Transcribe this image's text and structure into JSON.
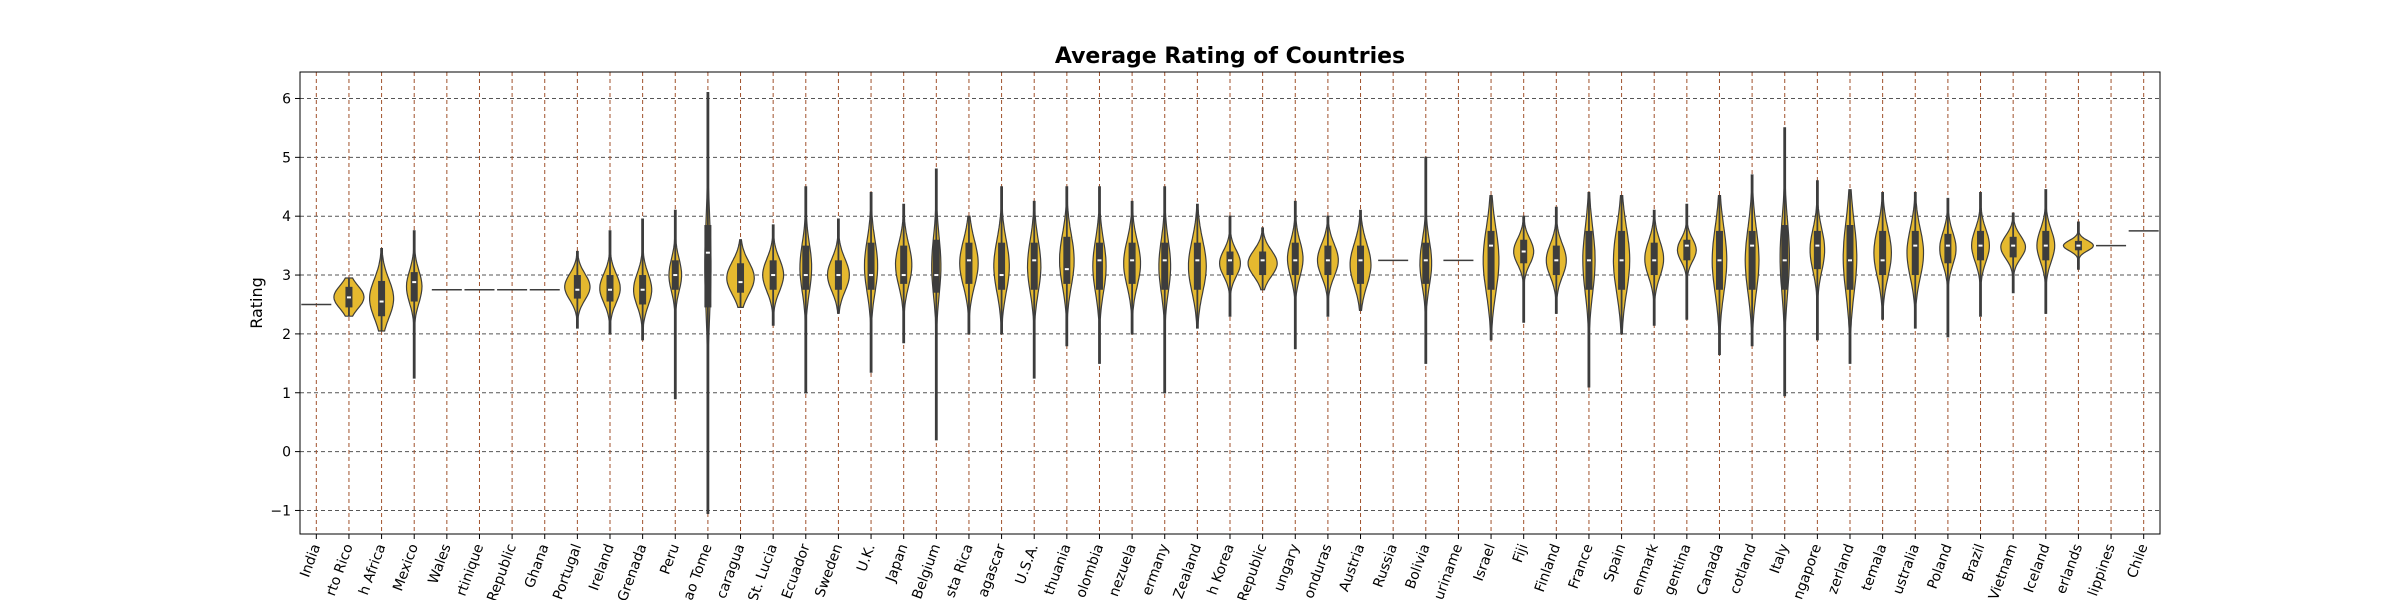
{
  "chart_data": {
    "type": "violin",
    "title": "Average Rating of Countries",
    "xlabel": "",
    "ylabel": "Rating",
    "ylim": [
      -1.4,
      6.45
    ],
    "yticks": [
      -1,
      0,
      1,
      2,
      3,
      4,
      5,
      6
    ],
    "ytick_labels": [
      "−1",
      "0",
      "1",
      "2",
      "3",
      "4",
      "5",
      "6"
    ],
    "grid": true,
    "legend": "none",
    "colors": {
      "violin_fill": "#e5b92f",
      "violin_edge": "#3d3d3d",
      "box": "#3d3d3d",
      "median": "#ffffff",
      "grid": "#555555",
      "grid_x": "#a0522d"
    },
    "categories": [
      "India",
      "Puerto Rico",
      "South Africa",
      "Mexico",
      "Wales",
      "Martinique",
      "Dominican Republic",
      "Ghana",
      "Portugal",
      "Ireland",
      "Grenada",
      "Peru",
      "Sao Tome",
      "Nicaragua",
      "St. Lucia",
      "Ecuador",
      "Sweden",
      "U.K.",
      "Japan",
      "Belgium",
      "Costa Rica",
      "Madagascar",
      "U.S.A.",
      "Lithuania",
      "Colombia",
      "Venezuela",
      "Germany",
      "New Zealand",
      "South Korea",
      "Czech Republic",
      "Hungary",
      "Honduras",
      "Austria",
      "Russia",
      "Bolivia",
      "Suriname",
      "Israel",
      "Fiji",
      "Finland",
      "France",
      "Spain",
      "Denmark",
      "Argentina",
      "Canada",
      "Scotland",
      "Italy",
      "Singapore",
      "Switzerland",
      "Guatemala",
      "Australia",
      "Poland",
      "Brazil",
      "Vietnam",
      "Iceland",
      "Netherlands",
      "Philippines",
      "Chile"
    ],
    "tick_labels_visible": [
      "India",
      "rto Rico",
      "h Africa",
      "Mexico",
      "Wales",
      "rtinique",
      "Republic",
      "Ghana",
      "Portugal",
      "Ireland",
      "Grenada",
      "Peru",
      "ao Tome",
      "caragua",
      "St. Lucia",
      "Ecuador",
      "Sweden",
      "U.K.",
      "Japan",
      "Belgium",
      "sta Rica",
      "agascar",
      "U.S.A.",
      "thuania",
      "olombia",
      "nezuela",
      "ermany",
      "Zealand",
      "h Korea",
      "Republic",
      "ungary",
      "onduras",
      "Austria",
      "Russia",
      "Bolivia",
      "uriname",
      "Israel",
      "Fiji",
      "Finland",
      "France",
      "Spain",
      "enmark",
      "gentina",
      "Canada",
      "cotland",
      "Italy",
      "ngapore",
      "zerland",
      "temala",
      "ustralia",
      "Poland",
      "Brazil",
      "Vietnam",
      "Iceland",
      "erlands",
      "lippines",
      "Chile"
    ],
    "series": [
      {
        "name": "India",
        "min": 2.5,
        "q1": 2.5,
        "median": 2.5,
        "q3": 2.5,
        "max": 2.5
      },
      {
        "name": "Puerto Rico",
        "min": 2.3,
        "q1": 2.45,
        "median": 2.62,
        "q3": 2.8,
        "max": 2.95
      },
      {
        "name": "South Africa",
        "min": 2.05,
        "q1": 2.3,
        "median": 2.55,
        "q3": 2.9,
        "max": 3.45
      },
      {
        "name": "Mexico",
        "min": 1.25,
        "q1": 2.55,
        "median": 2.88,
        "q3": 3.05,
        "max": 3.75
      },
      {
        "name": "Wales",
        "min": 2.75,
        "q1": 2.75,
        "median": 2.75,
        "q3": 2.75,
        "max": 2.75
      },
      {
        "name": "Martinique",
        "min": 2.75,
        "q1": 2.75,
        "median": 2.75,
        "q3": 2.75,
        "max": 2.75
      },
      {
        "name": "Dominican Republic",
        "min": 2.75,
        "q1": 2.75,
        "median": 2.75,
        "q3": 2.75,
        "max": 2.75
      },
      {
        "name": "Ghana",
        "min": 2.75,
        "q1": 2.75,
        "median": 2.75,
        "q3": 2.75,
        "max": 2.75
      },
      {
        "name": "Portugal",
        "min": 2.1,
        "q1": 2.6,
        "median": 2.75,
        "q3": 3.0,
        "max": 3.4
      },
      {
        "name": "Ireland",
        "min": 2.0,
        "q1": 2.55,
        "median": 2.75,
        "q3": 3.0,
        "max": 3.75
      },
      {
        "name": "Grenada",
        "min": 1.9,
        "q1": 2.5,
        "median": 2.75,
        "q3": 3.0,
        "max": 3.95
      },
      {
        "name": "Peru",
        "min": 0.9,
        "q1": 2.75,
        "median": 3.0,
        "q3": 3.25,
        "max": 4.1
      },
      {
        "name": "Sao Tome",
        "min": -1.05,
        "q1": 2.45,
        "median": 3.38,
        "q3": 3.85,
        "max": 6.1
      },
      {
        "name": "Nicaragua",
        "min": 2.45,
        "q1": 2.7,
        "median": 2.88,
        "q3": 3.2,
        "max": 3.6
      },
      {
        "name": "St. Lucia",
        "min": 2.15,
        "q1": 2.75,
        "median": 3.0,
        "q3": 3.25,
        "max": 3.85
      },
      {
        "name": "Ecuador",
        "min": 1.0,
        "q1": 2.75,
        "median": 3.0,
        "q3": 3.5,
        "max": 4.5
      },
      {
        "name": "Sweden",
        "min": 2.35,
        "q1": 2.75,
        "median": 3.0,
        "q3": 3.25,
        "max": 3.95
      },
      {
        "name": "U.K.",
        "min": 1.35,
        "q1": 2.75,
        "median": 3.0,
        "q3": 3.55,
        "max": 4.4
      },
      {
        "name": "Japan",
        "min": 1.85,
        "q1": 2.85,
        "median": 3.0,
        "q3": 3.5,
        "max": 4.2
      },
      {
        "name": "Belgium",
        "min": 0.2,
        "q1": 2.7,
        "median": 3.0,
        "q3": 3.6,
        "max": 4.8
      },
      {
        "name": "Costa Rica",
        "min": 2.0,
        "q1": 2.85,
        "median": 3.25,
        "q3": 3.55,
        "max": 4.0
      },
      {
        "name": "Madagascar",
        "min": 2.0,
        "q1": 2.75,
        "median": 3.0,
        "q3": 3.55,
        "max": 4.5
      },
      {
        "name": "U.S.A.",
        "min": 1.25,
        "q1": 2.75,
        "median": 3.25,
        "q3": 3.55,
        "max": 4.25
      },
      {
        "name": "Lithuania",
        "min": 1.8,
        "q1": 2.85,
        "median": 3.1,
        "q3": 3.65,
        "max": 4.5
      },
      {
        "name": "Colombia",
        "min": 1.5,
        "q1": 2.75,
        "median": 3.25,
        "q3": 3.55,
        "max": 4.5
      },
      {
        "name": "Venezuela",
        "min": 2.0,
        "q1": 2.85,
        "median": 3.25,
        "q3": 3.55,
        "max": 4.25
      },
      {
        "name": "Germany",
        "min": 1.0,
        "q1": 2.75,
        "median": 3.25,
        "q3": 3.55,
        "max": 4.5
      },
      {
        "name": "New Zealand",
        "min": 2.1,
        "q1": 2.75,
        "median": 3.25,
        "q3": 3.55,
        "max": 4.2
      },
      {
        "name": "South Korea",
        "min": 2.3,
        "q1": 3.0,
        "median": 3.25,
        "q3": 3.4,
        "max": 4.0
      },
      {
        "name": "Czech Republic",
        "min": 2.75,
        "q1": 3.0,
        "median": 3.25,
        "q3": 3.4,
        "max": 3.8
      },
      {
        "name": "Hungary",
        "min": 1.75,
        "q1": 3.0,
        "median": 3.25,
        "q3": 3.55,
        "max": 4.25
      },
      {
        "name": "Honduras",
        "min": 2.3,
        "q1": 3.0,
        "median": 3.25,
        "q3": 3.5,
        "max": 4.0
      },
      {
        "name": "Austria",
        "min": 2.4,
        "q1": 2.85,
        "median": 3.25,
        "q3": 3.5,
        "max": 4.1
      },
      {
        "name": "Russia",
        "min": 3.25,
        "q1": 3.25,
        "median": 3.25,
        "q3": 3.25,
        "max": 3.25
      },
      {
        "name": "Bolivia",
        "min": 1.5,
        "q1": 2.85,
        "median": 3.25,
        "q3": 3.55,
        "max": 5.0
      },
      {
        "name": "Suriname",
        "min": 3.25,
        "q1": 3.25,
        "median": 3.25,
        "q3": 3.25,
        "max": 3.25
      },
      {
        "name": "Israel",
        "min": 1.9,
        "q1": 2.75,
        "median": 3.5,
        "q3": 3.75,
        "max": 4.35
      },
      {
        "name": "Fiji",
        "min": 2.2,
        "q1": 3.2,
        "median": 3.4,
        "q3": 3.6,
        "max": 4.0
      },
      {
        "name": "Finland",
        "min": 2.35,
        "q1": 3.0,
        "median": 3.25,
        "q3": 3.5,
        "max": 4.15
      },
      {
        "name": "France",
        "min": 1.1,
        "q1": 2.75,
        "median": 3.25,
        "q3": 3.75,
        "max": 4.4
      },
      {
        "name": "Spain",
        "min": 2.0,
        "q1": 2.75,
        "median": 3.25,
        "q3": 3.75,
        "max": 4.35
      },
      {
        "name": "Denmark",
        "min": 2.15,
        "q1": 3.0,
        "median": 3.25,
        "q3": 3.55,
        "max": 4.1
      },
      {
        "name": "Argentina",
        "min": 2.25,
        "q1": 3.25,
        "median": 3.5,
        "q3": 3.6,
        "max": 4.2
      },
      {
        "name": "Canada",
        "min": 1.65,
        "q1": 2.75,
        "median": 3.25,
        "q3": 3.75,
        "max": 4.35
      },
      {
        "name": "Scotland",
        "min": 1.8,
        "q1": 2.75,
        "median": 3.5,
        "q3": 3.75,
        "max": 4.7
      },
      {
        "name": "Italy",
        "min": 0.95,
        "q1": 2.75,
        "median": 3.25,
        "q3": 3.85,
        "max": 5.5
      },
      {
        "name": "Singapore",
        "min": 1.9,
        "q1": 3.1,
        "median": 3.5,
        "q3": 3.75,
        "max": 4.6
      },
      {
        "name": "Switzerland",
        "min": 1.5,
        "q1": 2.75,
        "median": 3.25,
        "q3": 3.85,
        "max": 4.45
      },
      {
        "name": "Guatemala",
        "min": 2.25,
        "q1": 3.0,
        "median": 3.25,
        "q3": 3.75,
        "max": 4.4
      },
      {
        "name": "Australia",
        "min": 2.1,
        "q1": 3.0,
        "median": 3.5,
        "q3": 3.75,
        "max": 4.4
      },
      {
        "name": "Poland",
        "min": 1.95,
        "q1": 3.2,
        "median": 3.5,
        "q3": 3.7,
        "max": 4.3
      },
      {
        "name": "Brazil",
        "min": 2.3,
        "q1": 3.25,
        "median": 3.5,
        "q3": 3.75,
        "max": 4.4
      },
      {
        "name": "Vietnam",
        "min": 2.7,
        "q1": 3.3,
        "median": 3.5,
        "q3": 3.65,
        "max": 4.05
      },
      {
        "name": "Iceland",
        "min": 2.35,
        "q1": 3.25,
        "median": 3.5,
        "q3": 3.75,
        "max": 4.45
      },
      {
        "name": "Netherlands",
        "min": 3.1,
        "q1": 3.42,
        "median": 3.5,
        "q3": 3.58,
        "max": 3.9
      },
      {
        "name": "Philippines",
        "min": 3.5,
        "q1": 3.5,
        "median": 3.5,
        "q3": 3.5,
        "max": 3.5
      },
      {
        "name": "Chile",
        "min": 3.75,
        "q1": 3.75,
        "median": 3.75,
        "q3": 3.75,
        "max": 3.75
      }
    ]
  }
}
